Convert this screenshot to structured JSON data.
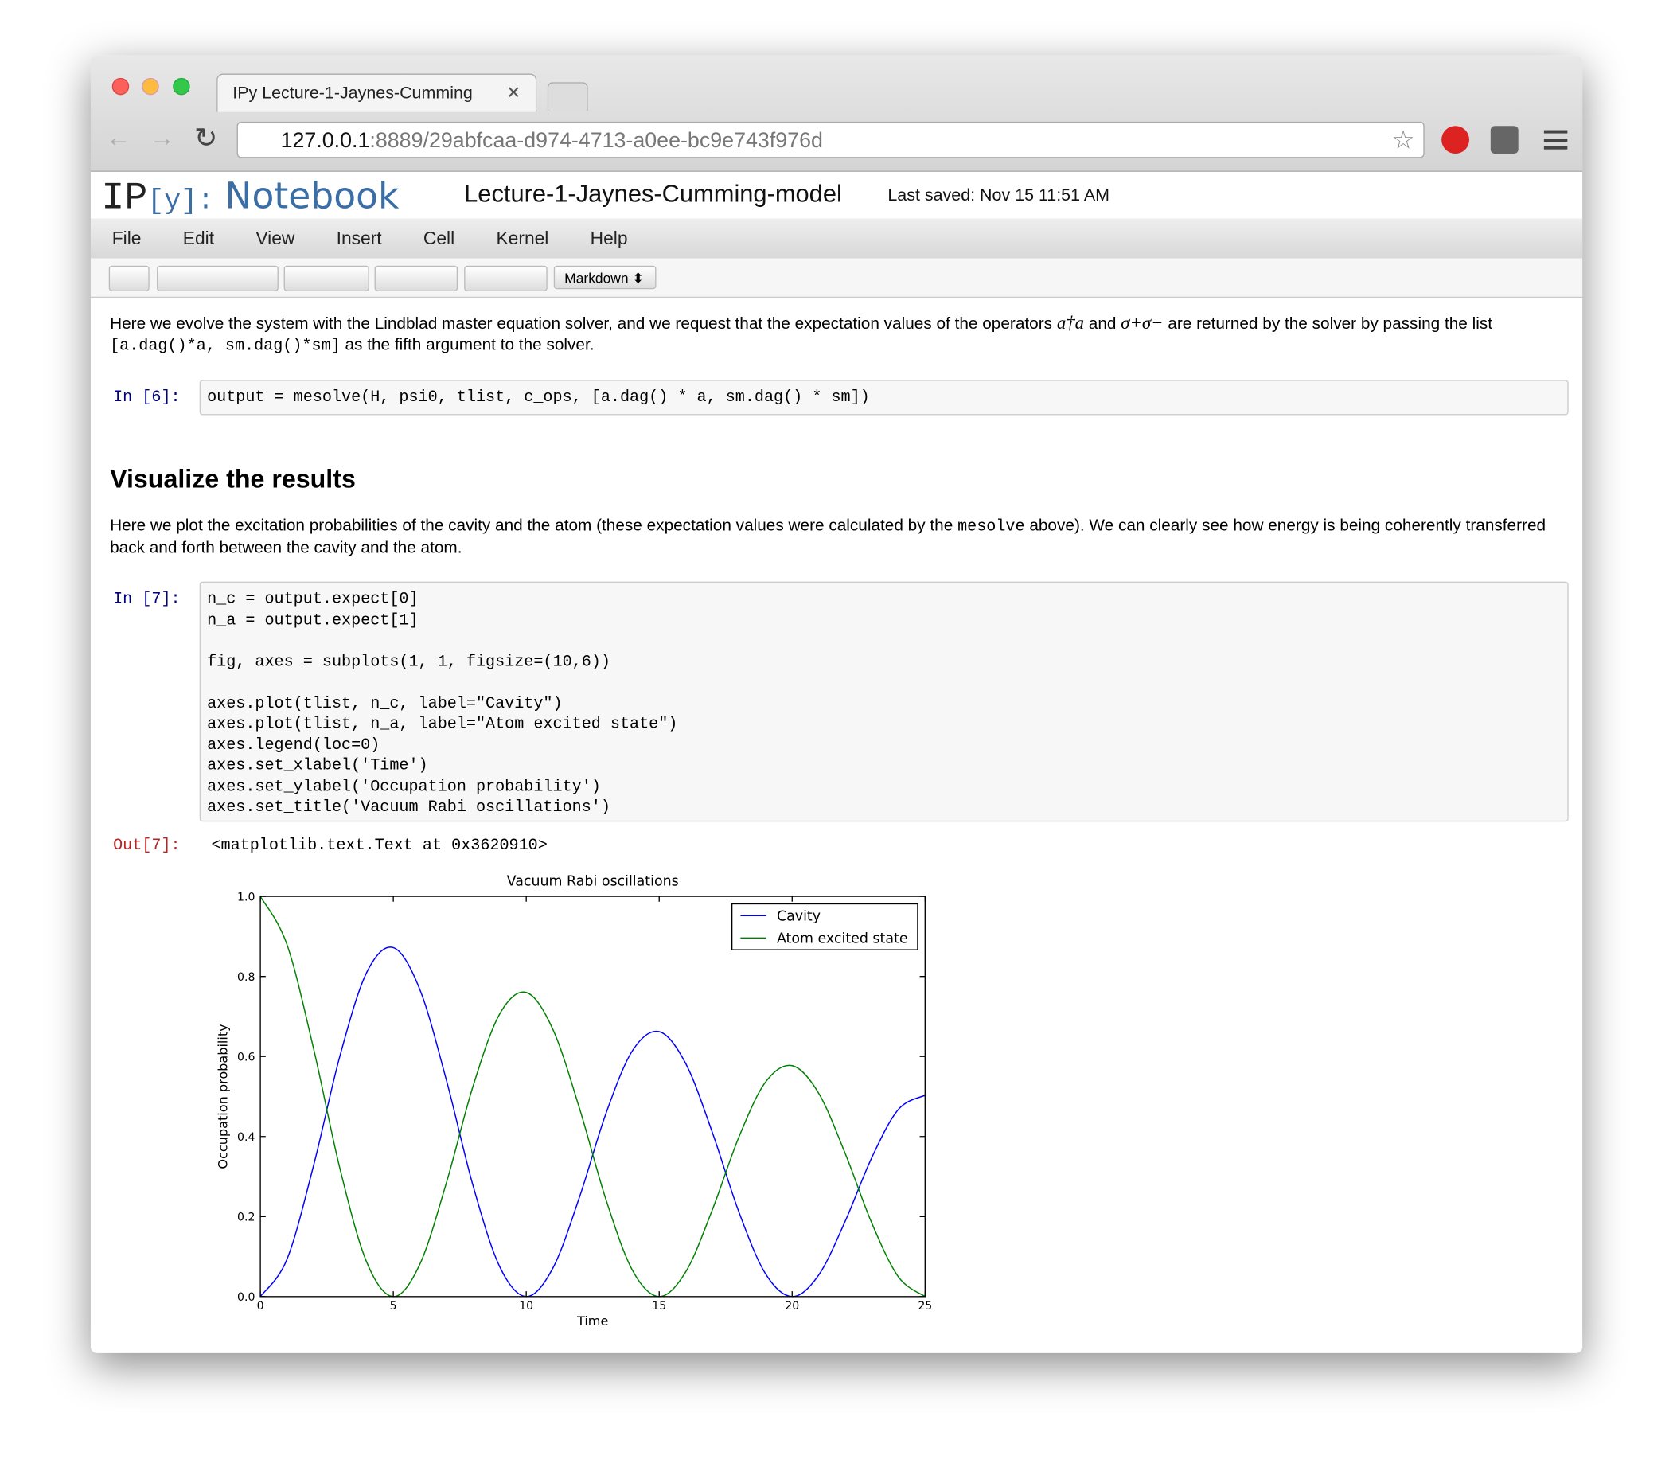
{
  "browser": {
    "tab_title": "IPy Lecture-1-Jaynes-Cumming",
    "url_host": "127.0.0.1",
    "url_rest": ":8889/29abfcaa-d974-4713-a0ee-bc9e743f976d"
  },
  "header": {
    "logo_ip": "IP",
    "logo_y": "[y]:",
    "logo_notebook": "Notebook",
    "notebook_name": "Lecture-1-Jaynes-Cumming-model",
    "last_saved": "Last saved: Nov 15 11:51 AM"
  },
  "menu": [
    "File",
    "Edit",
    "View",
    "Insert",
    "Cell",
    "Kernel",
    "Help"
  ],
  "toolbar": {
    "cell_type": "Markdown"
  },
  "cells": [
    {
      "type": "markdown",
      "parts": [
        "Here we evolve the system with the Lindblad master equation solver, and we request that the expectation values of the operators",
        "a†a",
        "and",
        "σ+σ−",
        "are returned by the solver by passing the list",
        "[a.dag()*a, sm.dag()*sm]",
        "as the fifth argument to the solver."
      ]
    },
    {
      "type": "code",
      "prompt": "In [6]:",
      "blocks": [
        [
          "output = mesolve(H, psi0, tlist, c_ops, [a.dag() * a, sm.dag() * sm])"
        ]
      ]
    },
    {
      "type": "heading",
      "text": "Visualize the results"
    },
    {
      "type": "markdown",
      "parts": [
        "Here we plot the excitation probabilities of the cavity and the atom (these expectation values were calculated by the",
        "mesolve",
        "above). We can clearly see how energy is being coherently transferred back and forth between the cavity and the atom."
      ]
    },
    {
      "type": "code",
      "prompt": "In [7]:",
      "blocks": [
        [
          "n_c = output.expect[0]",
          "n_a = output.expect[1]"
        ],
        [
          "fig, axes = subplots(1, 1, figsize=(10,6))"
        ],
        [
          "axes.plot(tlist, n_c, label=\"Cavity\")",
          "axes.plot(tlist, n_a, label=\"Atom excited state\")",
          "axes.legend(loc=0)",
          "axes.set_xlabel('Time')",
          "axes.set_ylabel('Occupation probability')",
          "axes.set_title('Vacuum Rabi oscillations')"
        ]
      ]
    },
    {
      "type": "output",
      "prompt": "Out[7]:",
      "text": "<matplotlib.text.Text at 0x3620910>"
    }
  ],
  "chart_data": {
    "type": "line",
    "title": "Vacuum Rabi oscillations",
    "x_label": "Time",
    "y_label": "Occupation probability",
    "x": [
      0,
      1,
      2,
      3,
      4,
      5,
      6,
      7,
      8,
      9,
      10,
      11,
      12,
      13,
      14,
      15,
      16,
      17,
      18,
      19,
      20,
      21,
      22,
      23,
      24,
      25
    ],
    "series": [
      {
        "name": "Cavity",
        "color": "#0000ff",
        "values": [
          0,
          0.093,
          0.327,
          0.603,
          0.81,
          0.872,
          0.767,
          0.54,
          0.277,
          0.075,
          0,
          0.071,
          0.248,
          0.458,
          0.615,
          0.662,
          0.582,
          0.41,
          0.211,
          0.057,
          0,
          0.054,
          0.189,
          0.348,
          0.468,
          0.503
        ]
      },
      {
        "name": "Atom excited state",
        "color": "#008000",
        "values": [
          1,
          0.88,
          0.62,
          0.318,
          0.086,
          0,
          0.081,
          0.285,
          0.526,
          0.706,
          0.76,
          0.668,
          0.471,
          0.242,
          0.065,
          0,
          0.062,
          0.217,
          0.399,
          0.536,
          0.577,
          0.508,
          0.357,
          0.183,
          0.049,
          0
        ]
      }
    ],
    "xlim": [
      0,
      25
    ],
    "xticks": [
      0,
      5,
      10,
      15,
      20,
      25
    ],
    "ylim": [
      0,
      1
    ],
    "yticks": [
      {
        "value": 0,
        "label": "0.0"
      },
      0.2,
      0.4,
      0.6,
      0.8,
      {
        "value": 1,
        "label": "1.0"
      }
    ],
    "legend": "upper right"
  }
}
